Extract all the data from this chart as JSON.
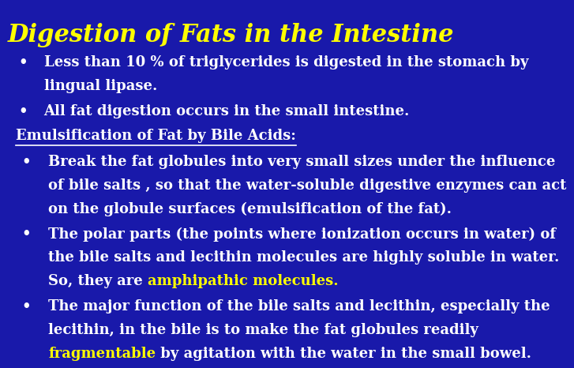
{
  "background_color": "#1919aa",
  "title": "Digestion of Fats in the Intestine",
  "title_color": "#ffff00",
  "title_fontsize": 22,
  "body_color": "#ffffff",
  "highlight_color": "#ffff00",
  "body_fontsize": 13,
  "bullet1_line1": "Less than 10 % of triglycerides is digested in the stomach by",
  "bullet1_line2": "lingual lipase.",
  "bullet2": "All fat digestion occurs in the small intestine.",
  "section_header": "Emulsification of Fat by Bile Acids:",
  "sub1_line1": "Break the fat globules into very small sizes under the influence",
  "sub1_line2": "of bile salts , so that the water-soluble digestive enzymes can act",
  "sub1_line3": "on the globule surfaces (emulsification of the fat).",
  "sub2_line1": "The polar parts (the points where ionization occurs in water) of",
  "sub2_line2": "the bile salts and lecithin molecules are highly soluble in water.",
  "sub2_line3_pre": "So, they are ",
  "sub2_line3_hi": "amphipathic molecules.",
  "sub3_line1": "The major function of the bile salts and lecithin, especially the",
  "sub3_line2": "lecithin, in the bile is to make the fat globules readily",
  "sub3_line3_hi": "fragmentable",
  "sub3_line3_post": " by agitation with the water in the small bowel."
}
